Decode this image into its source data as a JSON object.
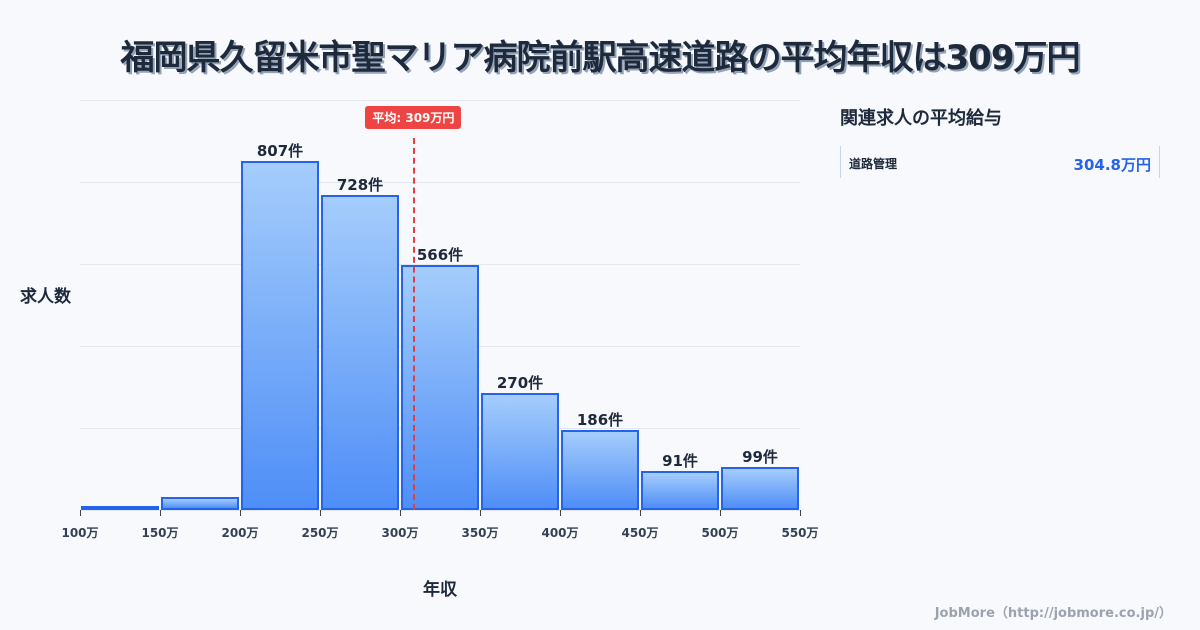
{
  "title": "福岡県久留米市聖マリア病院前駅高速道路の平均年収は309万円",
  "chart": {
    "ylabel": "求人数",
    "xlabel": "年収",
    "avg_badge": "平均: 309万円",
    "x_ticks": [
      "100万",
      "150万",
      "200万",
      "250万",
      "300万",
      "350万",
      "400万",
      "450万",
      "500万",
      "550万"
    ]
  },
  "sidebar": {
    "title": "関連求人の平均給与",
    "items": [
      {
        "name": "道路管理",
        "value": "304.8万円"
      }
    ]
  },
  "footer": "JobMore（http://jobmore.co.jp/）",
  "colors": {
    "bar_border": "#2563eb",
    "avg_line": "#ef4444",
    "accent_value": "#2563eb"
  },
  "chart_data": {
    "type": "bar",
    "title": "福岡県久留米市聖マリア病院前駅高速道路の平均年収は309万円",
    "xlabel": "年収",
    "ylabel": "求人数",
    "categories": [
      "100-150万",
      "150-200万",
      "200-250万",
      "250-300万",
      "300-350万",
      "350-400万",
      "400-450万",
      "450-500万",
      "500-550万"
    ],
    "values": [
      4,
      30,
      807,
      728,
      566,
      270,
      186,
      91,
      99
    ],
    "labels": [
      "",
      "",
      "807件",
      "728件",
      "566件",
      "270件",
      "186件",
      "91件",
      "99件"
    ],
    "average": 309,
    "average_label": "平均: 309万円",
    "xlim": [
      100,
      550
    ],
    "grid": true
  }
}
